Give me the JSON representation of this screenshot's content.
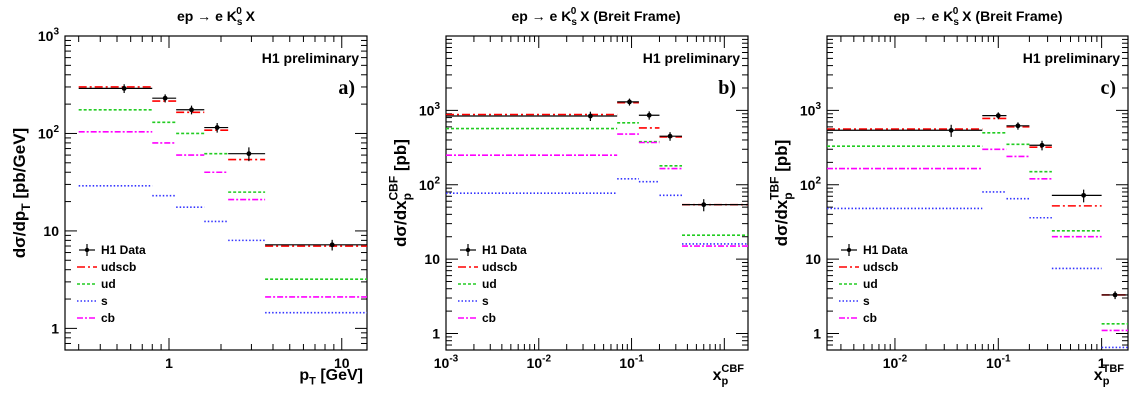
{
  "chart_data": [
    {
      "type": "step",
      "panel_letter": "a)",
      "title": "ep → e K_s^0 X",
      "annotation": "H1 preliminary",
      "xlabel": "p_T [GeV]",
      "ylabel": "dσ/dp_T [pb/GeV]",
      "xscale": "log",
      "yscale": "log",
      "xlim": [
        0.25,
        14
      ],
      "ylim": [
        0.6,
        1000
      ],
      "x_tick_labels": [
        "1",
        "10"
      ],
      "y_tick_labels": [
        "1",
        "10",
        "10^2",
        "10^3"
      ],
      "legend_position": "bottom-left",
      "bin_edges": [
        0.3,
        0.8,
        1.1,
        1.6,
        2.2,
        3.6,
        14
      ],
      "data": {
        "name": "H1 Data",
        "x": [
          0.55,
          0.95,
          1.35,
          1.9,
          2.9,
          8.8
        ],
        "y": [
          290,
          230,
          175,
          115,
          62,
          7.2
        ],
        "err": [
          30,
          22,
          18,
          13,
          10,
          0.9
        ]
      },
      "series": [
        {
          "name": "udscb",
          "color": "#ff0000",
          "dash": "8,3,2,3",
          "values": [
            300,
            215,
            165,
            108,
            54,
            7.0
          ]
        },
        {
          "name": "ud",
          "color": "#22cc22",
          "dash": "3,2",
          "values": [
            175,
            130,
            100,
            62,
            25,
            3.2
          ]
        },
        {
          "name": "s",
          "color": "#3333ff",
          "dash": "1.5,2",
          "values": [
            29,
            23,
            17.5,
            12.5,
            8.0,
            1.45
          ]
        },
        {
          "name": "cb",
          "color": "#ff00ff",
          "dash": "6,2,2,2",
          "values": [
            104,
            80,
            60,
            40,
            21,
            2.1
          ]
        }
      ]
    },
    {
      "type": "step",
      "panel_letter": "b)",
      "title": "ep → e K_s^0 X (Breit Frame)",
      "annotation": "H1 preliminary",
      "xlabel": "x_p^CBF",
      "ylabel": "dσ/dx_p^CBF [pb]",
      "xscale": "log",
      "yscale": "log",
      "xlim": [
        0.001,
        1.8
      ],
      "ylim": [
        0.6,
        10000
      ],
      "x_tick_labels": [
        "10^-3",
        "10^-2",
        "10^-1"
      ],
      "y_tick_labels": [
        "1",
        "10",
        "10^2",
        "10^3"
      ],
      "legend_position": "bottom-left",
      "bin_edges": [
        0.001,
        0.07,
        0.12,
        0.2,
        0.35,
        1.8
      ],
      "data": {
        "name": "H1 Data",
        "x": [
          0.036,
          0.095,
          0.155,
          0.26,
          0.6
        ],
        "y": [
          840,
          1300,
          860,
          450,
          54
        ],
        "err": [
          120,
          140,
          110,
          60,
          10
        ]
      },
      "series": [
        {
          "name": "udscb",
          "color": "#ff0000",
          "dash": "8,3,2,3",
          "values": [
            880,
            1270,
            580,
            440,
            54
          ]
        },
        {
          "name": "ud",
          "color": "#22cc22",
          "dash": "3,2",
          "values": [
            570,
            680,
            380,
            180,
            21
          ]
        },
        {
          "name": "s",
          "color": "#3333ff",
          "dash": "1.5,2",
          "values": [
            77,
            120,
            110,
            72,
            16
          ]
        },
        {
          "name": "cb",
          "color": "#ff00ff",
          "dash": "6,2,2,2",
          "values": [
            250,
            480,
            370,
            165,
            15
          ]
        }
      ]
    },
    {
      "type": "step",
      "panel_letter": "c)",
      "title": "ep → e K_s^0 X (Breit Frame)",
      "annotation": "H1 preliminary",
      "xlabel": "x_p^TBF",
      "ylabel": "dσ/dx_p^TBF [pb]",
      "xscale": "log",
      "yscale": "log",
      "xlim": [
        0.0022,
        1.8
      ],
      "ylim": [
        0.6,
        10000
      ],
      "x_tick_labels": [
        "10^-2",
        "10^-1",
        "1"
      ],
      "y_tick_labels": [
        "1",
        "10",
        "10^2",
        "10^3"
      ],
      "legend_position": "bottom-left",
      "bin_edges": [
        0.0022,
        0.07,
        0.12,
        0.2,
        0.33,
        1.0,
        1.8
      ],
      "data": {
        "name": "H1 Data",
        "x": [
          0.035,
          0.1,
          0.155,
          0.265,
          0.67,
          1.35
        ],
        "y": [
          540,
          850,
          620,
          340,
          72,
          3.3
        ],
        "err": [
          100,
          90,
          70,
          50,
          14,
          0.4
        ]
      },
      "series": [
        {
          "name": "udscb",
          "color": "#ff0000",
          "dash": "8,3,2,3",
          "values": [
            560,
            780,
            600,
            320,
            52,
            3.3
          ]
        },
        {
          "name": "ud",
          "color": "#22cc22",
          "dash": "3,2",
          "values": [
            330,
            500,
            350,
            150,
            24,
            1.35
          ]
        },
        {
          "name": "s",
          "color": "#3333ff",
          "dash": "1.5,2",
          "values": [
            48,
            80,
            65,
            36,
            7.5,
            0.65
          ]
        },
        {
          "name": "cb",
          "color": "#ff00ff",
          "dash": "6,2,2,2",
          "values": [
            165,
            300,
            240,
            120,
            20,
            1.1
          ]
        }
      ]
    }
  ]
}
